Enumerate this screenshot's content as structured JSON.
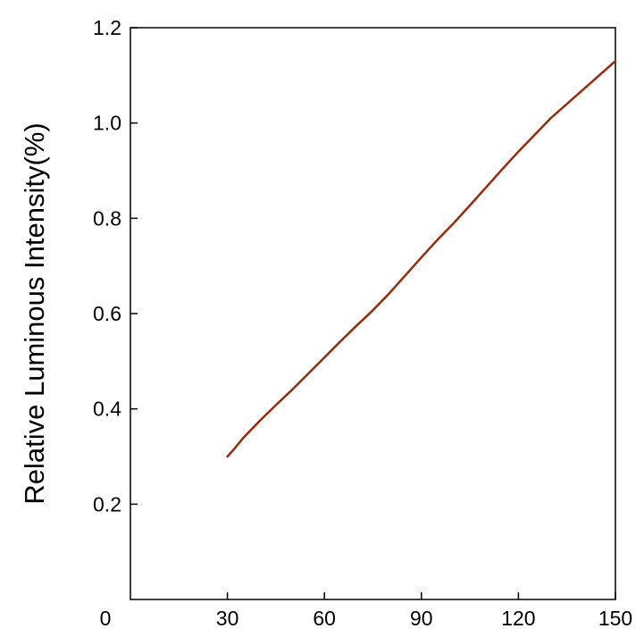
{
  "chart_data": {
    "type": "line",
    "title": "",
    "xlabel": "",
    "ylabel": "Relative Luminous Intensity(%)",
    "xlim": [
      0,
      150
    ],
    "ylim": [
      0,
      1.2
    ],
    "origin_label": "0",
    "x_ticks": [
      {
        "value": 30,
        "label": "30"
      },
      {
        "value": 60,
        "label": "60"
      },
      {
        "value": 90,
        "label": "90"
      },
      {
        "value": 120,
        "label": "120"
      },
      {
        "value": 150,
        "label": "150"
      }
    ],
    "y_ticks": [
      {
        "value": 0.2,
        "label": "0.2"
      },
      {
        "value": 0.4,
        "label": "0.4"
      },
      {
        "value": 0.6,
        "label": "0.6"
      },
      {
        "value": 0.8,
        "label": "0.8"
      },
      {
        "value": 1.0,
        "label": "1.0"
      },
      {
        "value": 1.2,
        "label": "1.2"
      }
    ],
    "grid": false,
    "legend": "none",
    "series": [
      {
        "color": "#9a2a0c",
        "x": [
          30,
          32,
          35,
          40,
          45,
          50,
          55,
          60,
          65,
          70,
          75,
          80,
          85,
          90,
          95,
          100,
          105,
          110,
          115,
          120,
          125,
          130,
          135,
          140,
          145,
          150
        ],
        "y": [
          0.3,
          0.315,
          0.34,
          0.375,
          0.408,
          0.44,
          0.474,
          0.508,
          0.542,
          0.575,
          0.607,
          0.642,
          0.68,
          0.718,
          0.755,
          0.79,
          0.827,
          0.865,
          0.903,
          0.94,
          0.975,
          1.01,
          1.04,
          1.07,
          1.1,
          1.13
        ]
      }
    ]
  }
}
